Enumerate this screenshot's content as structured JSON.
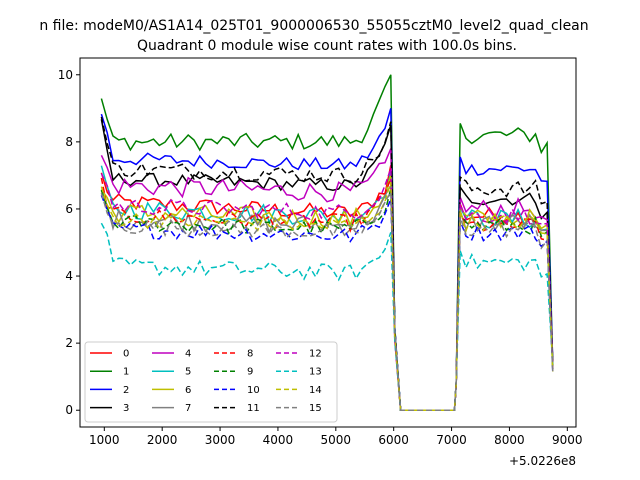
{
  "figure_title": "n file: modeM0/AS1A14_025T01_9000006530_55055cztM0_level2_quad_clean",
  "chart_data": {
    "type": "line",
    "title": "Quadrant 0 module wise count rates with 100.0s bins.",
    "xlabel": "",
    "ylabel": "",
    "x_offset_label": "+5.0226e8",
    "xlim": [
      580,
      9150
    ],
    "ylim": [
      -0.5,
      10.5
    ],
    "x_ticks": [
      1000,
      2000,
      3000,
      4000,
      5000,
      6000,
      7000,
      8000,
      9000
    ],
    "x_tick_labels": [
      "1000",
      "2000",
      "3000",
      "4000",
      "5000",
      "6000",
      "7000",
      "8000",
      "9000"
    ],
    "y_ticks": [
      0,
      2,
      4,
      6,
      8,
      10
    ],
    "y_tick_labels": [
      "0",
      "2",
      "4",
      "6",
      "8",
      "10"
    ],
    "grid": false,
    "legend_placement": "lower-left",
    "legend_columns": 4,
    "series": [
      {
        "name": "0",
        "color": "#ff0000",
        "dash": "solid",
        "base1": 6.2,
        "base2": 5.8,
        "slope": -0.08,
        "amp": 0.25,
        "peak": 7.3,
        "start": 7.0
      },
      {
        "name": "1",
        "color": "#008000",
        "dash": "solid",
        "base1": 8.0,
        "base2": 8.2,
        "slope": 0.0,
        "amp": 0.25,
        "peak": 10.0,
        "start": 9.3
      },
      {
        "name": "2",
        "color": "#0000ff",
        "dash": "solid",
        "base1": 7.5,
        "base2": 7.2,
        "slope": -0.05,
        "amp": 0.2,
        "peak": 9.0,
        "start": 8.9
      },
      {
        "name": "3",
        "color": "#000000",
        "dash": "solid",
        "base1": 6.9,
        "base2": 6.3,
        "slope": -0.05,
        "amp": 0.2,
        "peak": 8.5,
        "start": 8.5
      },
      {
        "name": "4",
        "color": "#bf00bf",
        "dash": "solid",
        "base1": 6.7,
        "base2": 6.0,
        "slope": -0.05,
        "amp": 0.3,
        "peak": 7.8,
        "start": 7.6
      },
      {
        "name": "5",
        "color": "#00bfbf",
        "dash": "solid",
        "base1": 6.0,
        "base2": 5.7,
        "slope": -0.05,
        "amp": 0.3,
        "peak": 7.1,
        "start": 7.0
      },
      {
        "name": "6",
        "color": "#bfbf00",
        "dash": "solid",
        "base1": 5.9,
        "base2": 5.7,
        "slope": -0.05,
        "amp": 0.3,
        "peak": 7.0,
        "start": 6.6
      },
      {
        "name": "7",
        "color": "#808080",
        "dash": "solid",
        "base1": 5.7,
        "base2": 5.6,
        "slope": -0.05,
        "amp": 0.3,
        "peak": 6.7,
        "start": 6.4
      },
      {
        "name": "8",
        "color": "#ff0000",
        "dash": "dashed",
        "base1": 5.8,
        "base2": 5.5,
        "slope": -0.05,
        "amp": 0.25,
        "peak": 6.9,
        "start": 6.8
      },
      {
        "name": "9",
        "color": "#008000",
        "dash": "dashed",
        "base1": 5.6,
        "base2": 5.5,
        "slope": -0.05,
        "amp": 0.25,
        "peak": 6.6,
        "start": 6.5
      },
      {
        "name": "10",
        "color": "#0000ff",
        "dash": "dashed",
        "base1": 5.4,
        "base2": 5.3,
        "slope": -0.05,
        "amp": 0.25,
        "peak": 6.3,
        "start": 6.2
      },
      {
        "name": "11",
        "color": "#000000",
        "dash": "dashed",
        "base1": 7.2,
        "base2": 6.6,
        "slope": -0.05,
        "amp": 0.25,
        "peak": 8.6,
        "start": 8.7
      },
      {
        "name": "12",
        "color": "#bf00bf",
        "dash": "dashed",
        "base1": 6.1,
        "base2": 5.8,
        "slope": -0.05,
        "amp": 0.25,
        "peak": 7.2,
        "start": 7.2
      },
      {
        "name": "13",
        "color": "#00bfbf",
        "dash": "dashed",
        "base1": 4.3,
        "base2": 4.4,
        "slope": -0.05,
        "amp": 0.25,
        "peak": 5.3,
        "start": 5.7
      },
      {
        "name": "14",
        "color": "#bfbf00",
        "dash": "dashed",
        "base1": 5.7,
        "base2": 5.6,
        "slope": -0.05,
        "amp": 0.25,
        "peak": 6.8,
        "start": 6.6
      },
      {
        "name": "15",
        "color": "#808080",
        "dash": "dashed",
        "base1": 5.5,
        "base2": 5.4,
        "slope": -0.05,
        "amp": 0.25,
        "peak": 6.5,
        "start": 6.3
      }
    ]
  }
}
